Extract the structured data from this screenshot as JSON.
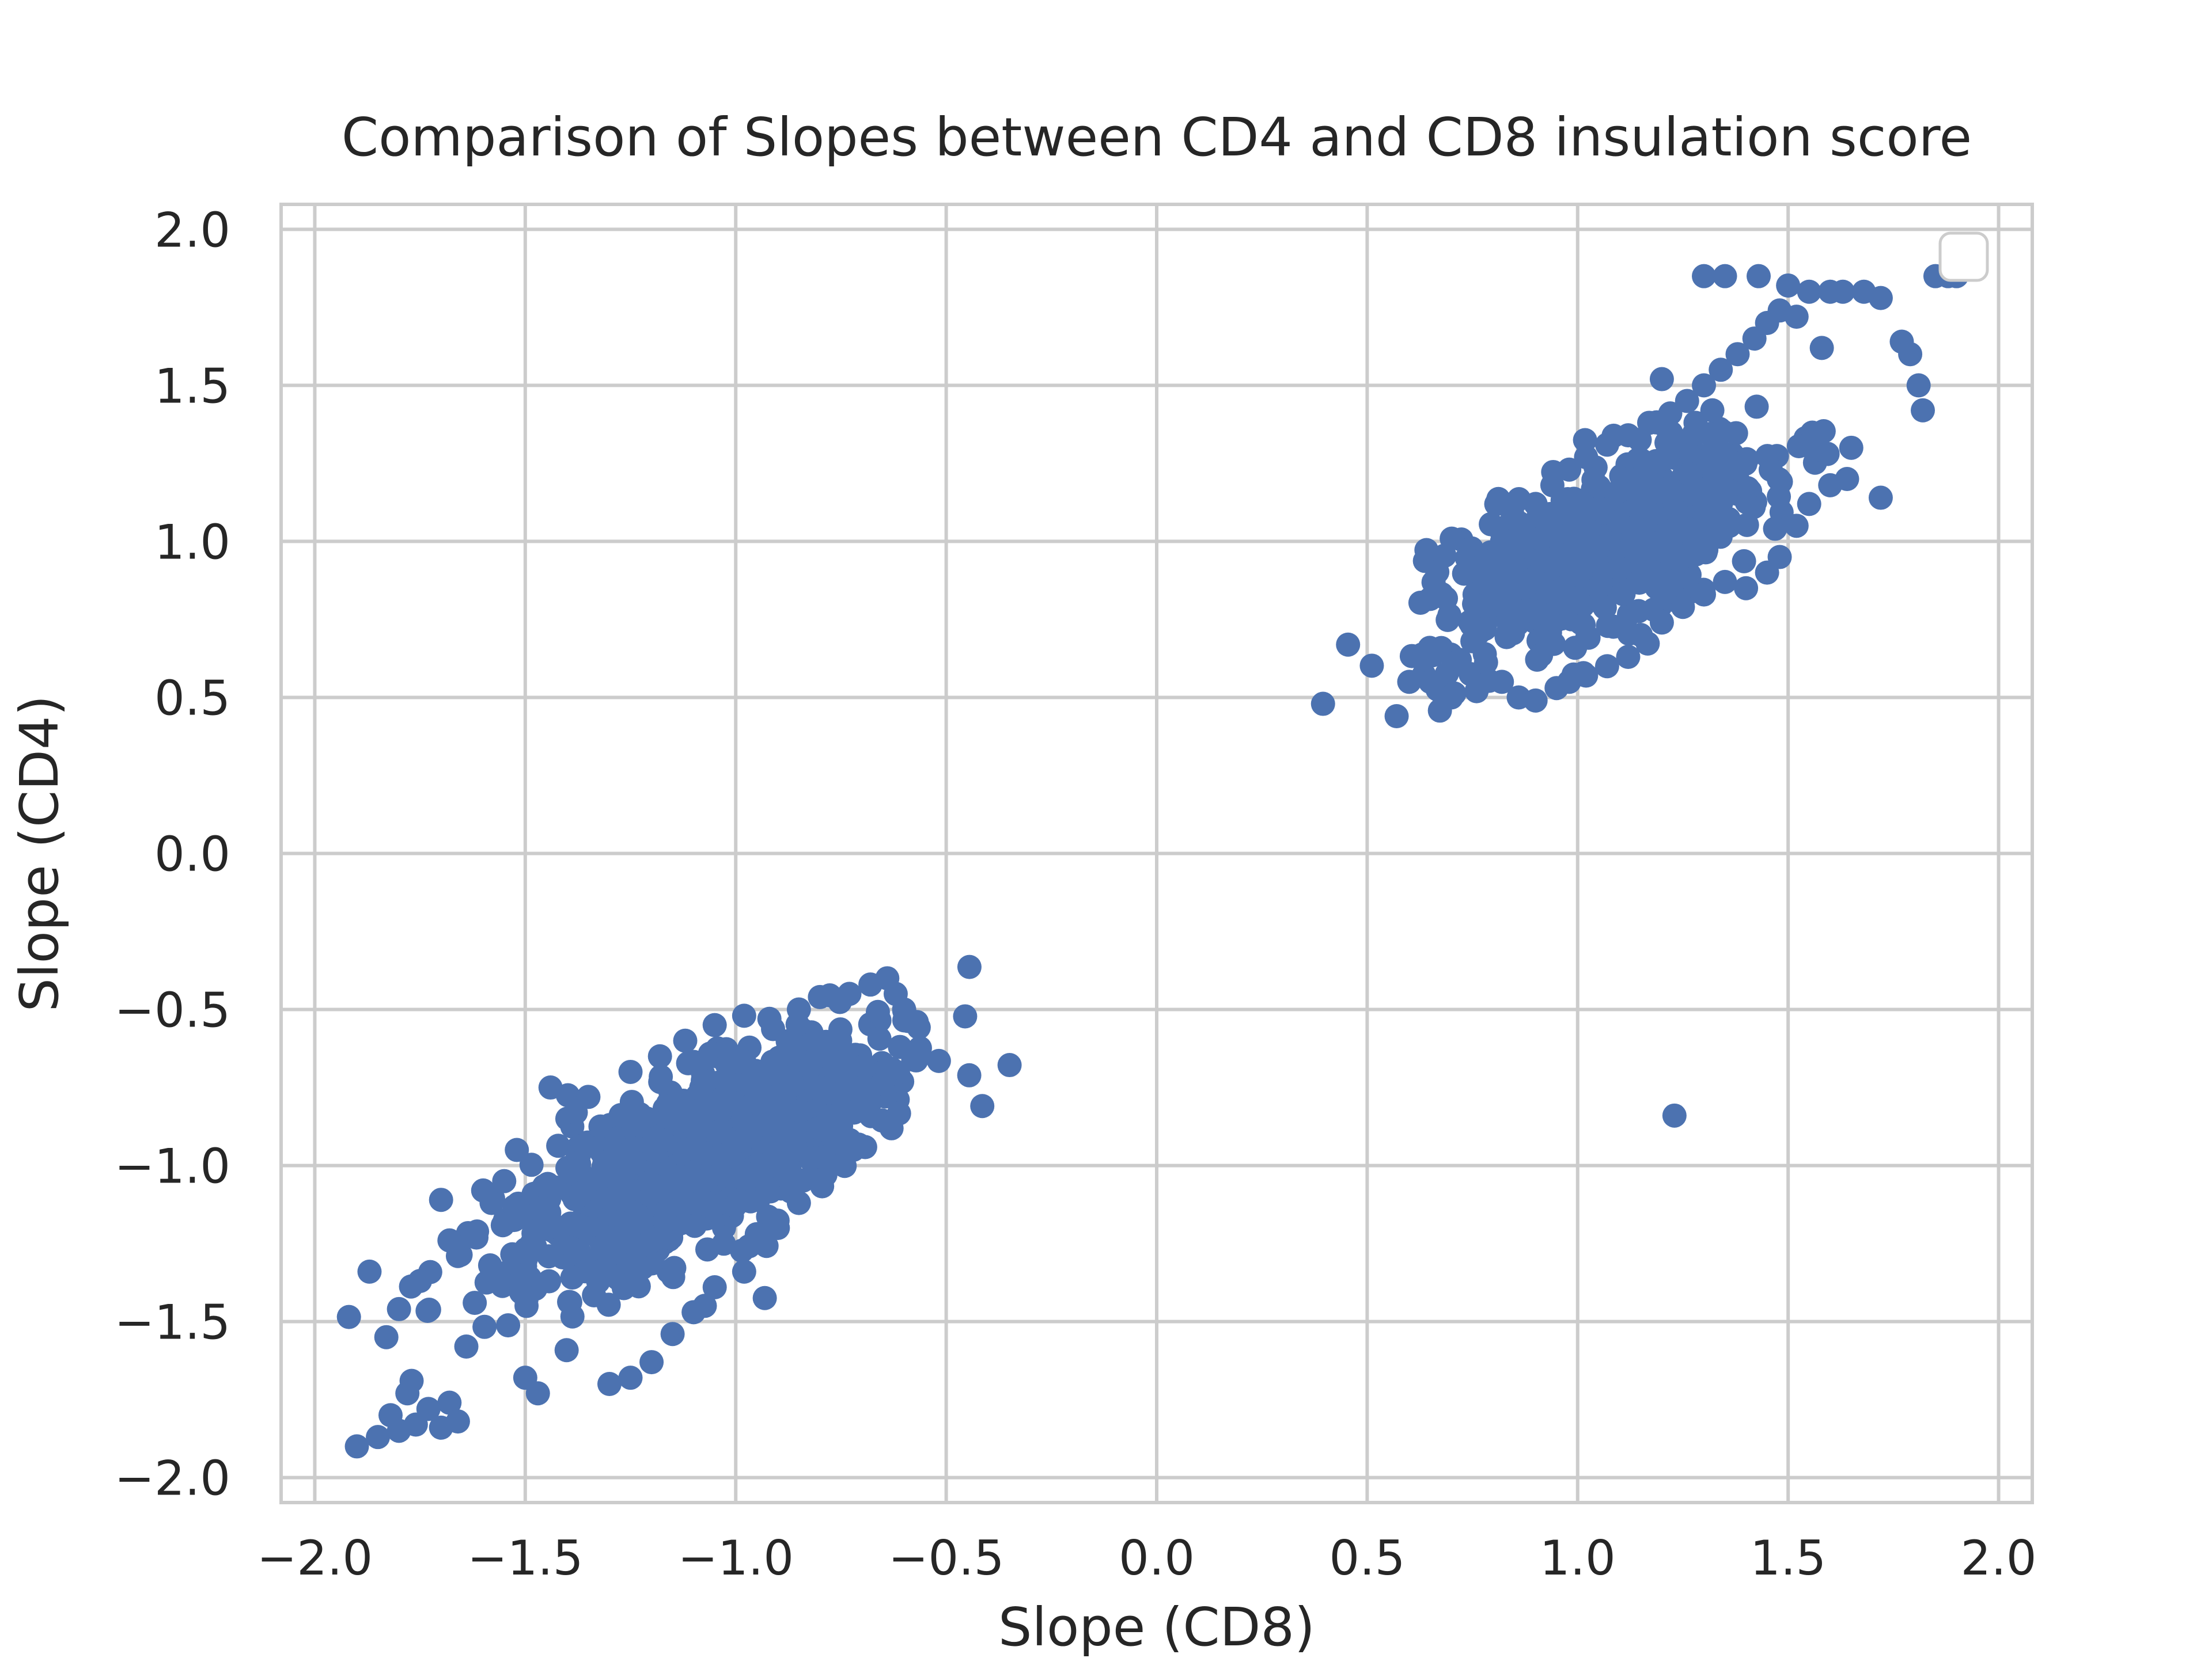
{
  "chart_data": {
    "type": "scatter",
    "title": "Comparison of Slopes between CD4 and CD8 insulation score",
    "xlabel": "Slope (CD8)",
    "ylabel": "Slope (CD4)",
    "xlim": [
      -2.08,
      2.08
    ],
    "ylim": [
      -2.08,
      2.08
    ],
    "xticks": [
      -2.0,
      -1.5,
      -1.0,
      -0.5,
      0.0,
      0.5,
      1.0,
      1.5,
      2.0
    ],
    "yticks": [
      -2.0,
      -1.5,
      -1.0,
      -0.5,
      0.0,
      0.5,
      1.0,
      1.5,
      2.0
    ],
    "xtick_labels": [
      "−2.0",
      "−1.5",
      "−1.0",
      "−0.5",
      "0.0",
      "0.5",
      "1.0",
      "1.5",
      "2.0"
    ],
    "ytick_labels": [
      "−2.0",
      "−1.5",
      "−1.0",
      "−0.5",
      "0.0",
      "0.5",
      "1.0",
      "1.5",
      "2.0"
    ],
    "grid": true,
    "legend": {
      "placement": "top-right",
      "entries": []
    },
    "point_color": "#4c72b0",
    "series": [
      {
        "points": [
          [
            -1.9,
            -1.9
          ],
          [
            -1.85,
            -1.87
          ],
          [
            -1.82,
            -1.8
          ],
          [
            -1.8,
            -1.85
          ],
          [
            -1.78,
            -1.73
          ],
          [
            -1.76,
            -1.83
          ],
          [
            -1.73,
            -1.78
          ],
          [
            -1.7,
            -1.84
          ],
          [
            -1.68,
            -1.76
          ],
          [
            -1.66,
            -1.82
          ],
          [
            -1.87,
            -1.34
          ],
          [
            -1.83,
            -1.55
          ],
          [
            -1.8,
            -1.46
          ],
          [
            -1.77,
            -1.69
          ],
          [
            -1.75,
            -1.37
          ],
          [
            -1.7,
            -1.11
          ],
          [
            -1.68,
            -1.24
          ],
          [
            -1.66,
            -1.29
          ],
          [
            -1.64,
            -1.58
          ],
          [
            -1.62,
            -1.44
          ],
          [
            -1.6,
            -1.08
          ],
          [
            -1.58,
            -1.12
          ],
          [
            -1.55,
            -1.05
          ],
          [
            -1.52,
            -0.95
          ],
          [
            -1.5,
            -1.68
          ],
          [
            -1.47,
            -1.73
          ],
          [
            -1.44,
            -0.75
          ],
          [
            -1.4,
            -0.85
          ],
          [
            -1.38,
            -0.83
          ],
          [
            -1.35,
            -0.78
          ],
          [
            -1.3,
            -1.7
          ],
          [
            -1.25,
            -1.68
          ],
          [
            -1.2,
            -1.63
          ],
          [
            -1.15,
            -1.54
          ],
          [
            -1.1,
            -1.47
          ],
          [
            -1.05,
            -1.39
          ],
          [
            -0.98,
            -1.34
          ],
          [
            -0.95,
            -1.22
          ],
          [
            -0.9,
            -1.2
          ],
          [
            -0.85,
            -1.12
          ],
          [
            -1.25,
            -0.7
          ],
          [
            -1.18,
            -0.65
          ],
          [
            -1.12,
            -0.6
          ],
          [
            -1.05,
            -0.55
          ],
          [
            -0.98,
            -0.52
          ],
          [
            -0.92,
            -0.53
          ],
          [
            -0.85,
            -0.5
          ],
          [
            -0.8,
            -0.46
          ],
          [
            -0.73,
            -0.45
          ],
          [
            -0.68,
            -0.42
          ],
          [
            -0.64,
            -0.4
          ],
          [
            -0.62,
            -0.45
          ],
          [
            -0.6,
            -0.5
          ],
          [
            -0.57,
            -0.54
          ],
          [
            -0.61,
            -0.62
          ],
          [
            -0.63,
            -0.69
          ],
          [
            -0.7,
            -0.75
          ],
          [
            -0.75,
            -0.85
          ],
          [
            -0.8,
            -0.88
          ],
          [
            -0.88,
            -0.92
          ],
          [
            0.57,
            0.44
          ],
          [
            0.6,
            0.55
          ],
          [
            0.65,
            0.55
          ],
          [
            0.7,
            0.5
          ],
          [
            0.72,
            0.62
          ],
          [
            0.75,
            0.68
          ],
          [
            0.78,
            0.72
          ],
          [
            0.76,
            0.52
          ],
          [
            0.82,
            0.55
          ],
          [
            0.86,
            0.5
          ],
          [
            0.9,
            0.49
          ],
          [
            0.95,
            0.53
          ],
          [
            0.98,
            0.55
          ],
          [
            1.02,
            0.57
          ],
          [
            1.07,
            0.6
          ],
          [
            1.12,
            0.63
          ],
          [
            1.15,
            0.7
          ],
          [
            1.2,
            0.74
          ],
          [
            1.25,
            0.79
          ],
          [
            1.3,
            0.83
          ],
          [
            1.35,
            0.87
          ],
          [
            1.4,
            0.85
          ],
          [
            1.45,
            0.9
          ],
          [
            1.48,
            0.95
          ],
          [
            1.52,
            1.05
          ],
          [
            1.55,
            1.12
          ],
          [
            1.6,
            1.18
          ],
          [
            1.64,
            1.2
          ],
          [
            1.72,
            1.14
          ],
          [
            1.65,
            1.3
          ],
          [
            0.78,
            0.88
          ],
          [
            0.8,
            0.94
          ],
          [
            0.83,
            1.0
          ],
          [
            0.86,
            1.06
          ],
          [
            0.9,
            1.12
          ],
          [
            0.94,
            1.18
          ],
          [
            0.98,
            1.23
          ],
          [
            1.02,
            1.27
          ],
          [
            1.07,
            1.31
          ],
          [
            1.12,
            1.34
          ],
          [
            1.17,
            1.38
          ],
          [
            1.22,
            1.41
          ],
          [
            1.26,
            1.45
          ],
          [
            1.3,
            1.5
          ],
          [
            1.34,
            1.55
          ],
          [
            1.38,
            1.6
          ],
          [
            1.42,
            1.65
          ],
          [
            1.45,
            1.7
          ],
          [
            1.48,
            1.74
          ],
          [
            1.52,
            1.72
          ],
          [
            1.3,
            1.85
          ],
          [
            1.35,
            1.85
          ],
          [
            1.43,
            1.85
          ],
          [
            1.5,
            1.82
          ],
          [
            1.55,
            1.8
          ],
          [
            1.6,
            1.8
          ],
          [
            1.63,
            1.8
          ],
          [
            1.68,
            1.8
          ],
          [
            1.72,
            1.78
          ],
          [
            1.77,
            1.64
          ],
          [
            1.79,
            1.6
          ],
          [
            1.81,
            1.5
          ],
          [
            1.82,
            1.42
          ],
          [
            1.85,
            1.85
          ],
          [
            1.88,
            1.85
          ],
          [
            1.9,
            1.85
          ],
          [
            1.2,
            1.52
          ],
          [
            1.28,
            1.38
          ],
          [
            1.32,
            1.42
          ],
          [
            1.58,
            1.62
          ],
          [
            1.23,
            -0.84
          ]
        ]
      }
    ]
  }
}
